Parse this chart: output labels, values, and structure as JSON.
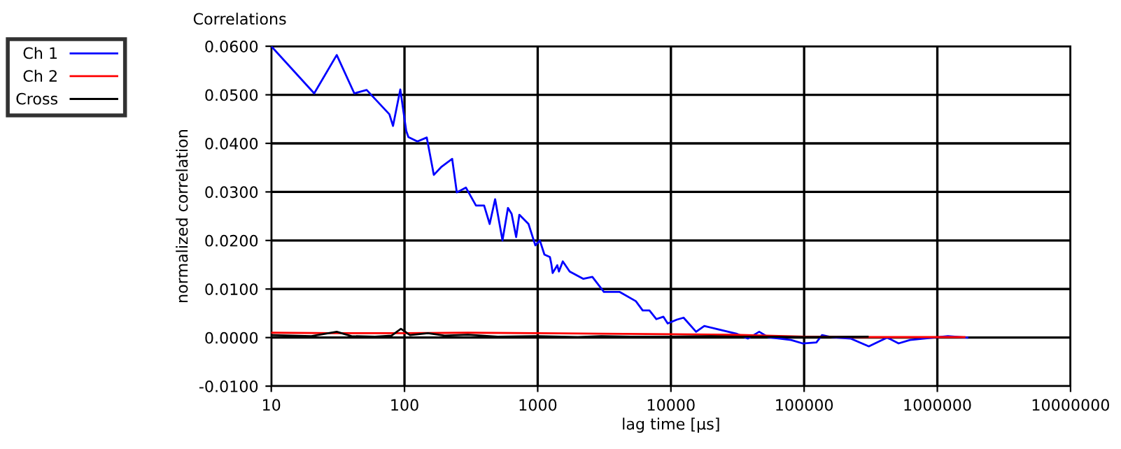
{
  "chart_data": {
    "type": "line",
    "title": "Correlations",
    "xlabel": "lag time [µs]",
    "ylabel": "normalized correlation",
    "log": "x",
    "grid": true,
    "legend": "top left",
    "line_style": "solid",
    "marker": "none",
    "xlim": [
      10,
      10000000
    ],
    "xticks": [
      10,
      100,
      1000,
      10000,
      100000,
      1000000,
      10000000
    ],
    "ylim": [
      -0.01,
      0.06
    ],
    "yticks": [
      {
        "value": -0.01,
        "label": "-0.0100"
      },
      {
        "value": 0,
        "label": "0.0000"
      },
      {
        "value": 0.01,
        "label": "0.0100"
      },
      {
        "value": 0.02,
        "label": "0.0200"
      },
      {
        "value": 0.03,
        "label": "0.0300"
      },
      {
        "value": 0.04,
        "label": "0.0400"
      },
      {
        "value": 0.05,
        "label": "0.0500"
      },
      {
        "value": 0.06,
        "label": "0.0600"
      }
    ],
    "series": [
      {
        "name": "Ch 1",
        "color": "#0000ff",
        "x": [
          10,
          21,
          31,
          42,
          52,
          77,
          82,
          93,
          103,
          107,
          125,
          147,
          166,
          190,
          228,
          247,
          289,
          344,
          396,
          436,
          479,
          544,
          598,
          637,
          689,
          728,
          853,
          960,
          1038,
          1123,
          1235,
          1265,
          1295,
          1403,
          1443,
          1543,
          1738,
          2203,
          2572,
          3139,
          4130,
          5453,
          6138,
          6900,
          7780,
          8770,
          9460,
          11090,
          12450,
          15450,
          17800,
          22600,
          31000,
          37800,
          46000,
          53600,
          79800,
          97400,
          123600,
          136000,
          161000,
          223000,
          306000,
          358000,
          420000,
          512000,
          623000,
          789000,
          1200000,
          1680000
        ],
        "values": [
          0.06,
          0.0503,
          0.0582,
          0.0503,
          0.051,
          0.046,
          0.0436,
          0.0511,
          0.0426,
          0.0413,
          0.0404,
          0.0412,
          0.0335,
          0.0352,
          0.0368,
          0.0299,
          0.0309,
          0.0272,
          0.0272,
          0.0234,
          0.0285,
          0.02,
          0.0267,
          0.0255,
          0.0207,
          0.0253,
          0.0234,
          0.019,
          0.02,
          0.0171,
          0.0166,
          0.0152,
          0.0133,
          0.0149,
          0.0136,
          0.0157,
          0.0136,
          0.0121,
          0.0125,
          0.0094,
          0.0094,
          0.0075,
          0.0056,
          0.0056,
          0.0038,
          0.0043,
          0.0029,
          0.0037,
          0.0041,
          0.0012,
          0.0024,
          0.0017,
          0.0008,
          -0.0002,
          0.0012,
          0.0001,
          -0.0005,
          -0.0012,
          -0.001,
          0.0005,
          0.0001,
          -0.0002,
          -0.0018,
          -0.0009,
          0.0,
          -0.0012,
          -0.0005,
          -0.0002,
          0.0003,
          0.0
        ]
      },
      {
        "name": "Ch 2",
        "color": "#ff0000",
        "x": [
          10,
          30,
          100,
          300,
          1000,
          3000,
          10000,
          30000,
          100000,
          300000,
          1000000,
          1600000
        ],
        "values": [
          0.001,
          0.0009,
          0.0009,
          0.001,
          0.0009,
          0.0008,
          0.0007,
          0.0006,
          0.0002,
          0.0001,
          0.0001,
          0.0001
        ]
      },
      {
        "name": "Cross",
        "color": "#000000",
        "x": [
          10,
          20,
          31,
          40,
          60,
          80,
          94,
          110,
          150,
          200,
          300,
          500,
          1000,
          2000,
          3000,
          5000,
          10000,
          20000,
          30000,
          50000,
          100000,
          300000
        ],
        "values": [
          0.0005,
          0.0003,
          0.0012,
          0.0003,
          0.0002,
          0.0004,
          0.0018,
          0.0005,
          0.0009,
          0.0004,
          0.0006,
          0.0002,
          0.0003,
          0.0001,
          0.0003,
          0.0002,
          0.0002,
          0.0003,
          0.0002,
          0.0002,
          0.0001,
          0.0002
        ]
      }
    ]
  }
}
